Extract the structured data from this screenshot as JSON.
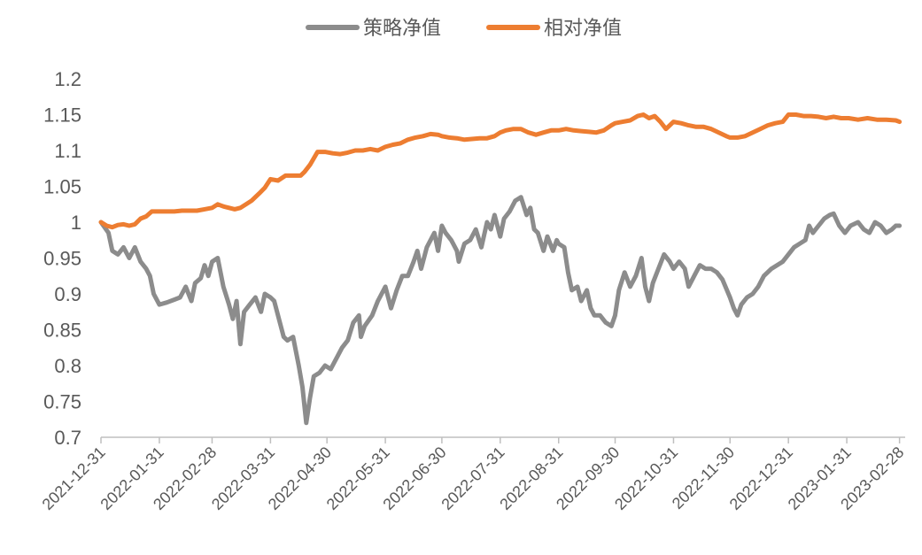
{
  "chart_data": {
    "type": "line",
    "title": "",
    "xlabel": "",
    "ylabel": "",
    "ylim": [
      0.7,
      1.2
    ],
    "yticks": [
      "0.7",
      "0.75",
      "0.8",
      "0.85",
      "0.9",
      "0.95",
      "1",
      "1.05",
      "1.1",
      "1.15",
      "1.2"
    ],
    "xlim": [
      "2021-12-31",
      "2023-03-03"
    ],
    "xticks": [
      "2021-12-31",
      "2022-01-31",
      "2022-02-28",
      "2022-03-31",
      "2022-04-30",
      "2022-05-31",
      "2022-06-30",
      "2022-07-31",
      "2022-08-31",
      "2022-09-30",
      "2022-10-31",
      "2022-11-30",
      "2022-12-31",
      "2023-01-31",
      "2023-02-28"
    ],
    "legend_position": "top-center",
    "grid": false,
    "series": [
      {
        "name": "策略净值",
        "color": "#8c8c8c",
        "points": [
          [
            "2021-12-31",
            1.0
          ],
          [
            "2022-01-04",
            0.985
          ],
          [
            "2022-01-06",
            0.96
          ],
          [
            "2022-01-09",
            0.955
          ],
          [
            "2022-01-12",
            0.965
          ],
          [
            "2022-01-15",
            0.95
          ],
          [
            "2022-01-18",
            0.965
          ],
          [
            "2022-01-21",
            0.945
          ],
          [
            "2022-01-24",
            0.935
          ],
          [
            "2022-01-26",
            0.925
          ],
          [
            "2022-01-28",
            0.9
          ],
          [
            "2022-01-31",
            0.885
          ],
          [
            "2022-02-04",
            0.888
          ],
          [
            "2022-02-08",
            0.892
          ],
          [
            "2022-02-11",
            0.895
          ],
          [
            "2022-02-14",
            0.91
          ],
          [
            "2022-02-17",
            0.89
          ],
          [
            "2022-02-19",
            0.915
          ],
          [
            "2022-02-22",
            0.922
          ],
          [
            "2022-02-24",
            0.94
          ],
          [
            "2022-02-26",
            0.925
          ],
          [
            "2022-02-28",
            0.945
          ],
          [
            "2022-03-03",
            0.95
          ],
          [
            "2022-03-06",
            0.91
          ],
          [
            "2022-03-09",
            0.885
          ],
          [
            "2022-03-11",
            0.865
          ],
          [
            "2022-03-13",
            0.89
          ],
          [
            "2022-03-15",
            0.83
          ],
          [
            "2022-03-17",
            0.875
          ],
          [
            "2022-03-20",
            0.885
          ],
          [
            "2022-03-23",
            0.895
          ],
          [
            "2022-03-26",
            0.875
          ],
          [
            "2022-03-28",
            0.9
          ],
          [
            "2022-03-31",
            0.895
          ],
          [
            "2022-04-02",
            0.89
          ],
          [
            "2022-04-05",
            0.86
          ],
          [
            "2022-04-07",
            0.84
          ],
          [
            "2022-04-09",
            0.835
          ],
          [
            "2022-04-12",
            0.84
          ],
          [
            "2022-04-15",
            0.8
          ],
          [
            "2022-04-17",
            0.77
          ],
          [
            "2022-04-19",
            0.72
          ],
          [
            "2022-04-21",
            0.755
          ],
          [
            "2022-04-23",
            0.785
          ],
          [
            "2022-04-26",
            0.79
          ],
          [
            "2022-04-29",
            0.8
          ],
          [
            "2022-05-02",
            0.795
          ],
          [
            "2022-05-05",
            0.81
          ],
          [
            "2022-05-08",
            0.825
          ],
          [
            "2022-05-11",
            0.835
          ],
          [
            "2022-05-14",
            0.86
          ],
          [
            "2022-05-17",
            0.87
          ],
          [
            "2022-05-18",
            0.84
          ],
          [
            "2022-05-20",
            0.855
          ],
          [
            "2022-05-24",
            0.87
          ],
          [
            "2022-05-27",
            0.89
          ],
          [
            "2022-05-31",
            0.91
          ],
          [
            "2022-06-03",
            0.88
          ],
          [
            "2022-06-06",
            0.905
          ],
          [
            "2022-06-09",
            0.925
          ],
          [
            "2022-06-12",
            0.925
          ],
          [
            "2022-06-15",
            0.945
          ],
          [
            "2022-06-17",
            0.96
          ],
          [
            "2022-06-19",
            0.935
          ],
          [
            "2022-06-22",
            0.965
          ],
          [
            "2022-06-26",
            0.985
          ],
          [
            "2022-06-28",
            0.96
          ],
          [
            "2022-06-30",
            0.995
          ],
          [
            "2022-07-02",
            0.985
          ],
          [
            "2022-07-05",
            0.975
          ],
          [
            "2022-07-08",
            0.96
          ],
          [
            "2022-07-09",
            0.945
          ],
          [
            "2022-07-12",
            0.97
          ],
          [
            "2022-07-15",
            0.975
          ],
          [
            "2022-07-18",
            0.99
          ],
          [
            "2022-07-21",
            0.965
          ],
          [
            "2022-07-24",
            1.0
          ],
          [
            "2022-07-26",
            0.99
          ],
          [
            "2022-07-28",
            1.01
          ],
          [
            "2022-07-31",
            0.98
          ],
          [
            "2022-08-02",
            1.005
          ],
          [
            "2022-08-05",
            1.015
          ],
          [
            "2022-08-08",
            1.03
          ],
          [
            "2022-08-11",
            1.035
          ],
          [
            "2022-08-14",
            1.01
          ],
          [
            "2022-08-16",
            1.02
          ],
          [
            "2022-08-18",
            0.99
          ],
          [
            "2022-08-20",
            0.985
          ],
          [
            "2022-08-23",
            0.96
          ],
          [
            "2022-08-25",
            0.98
          ],
          [
            "2022-08-28",
            0.96
          ],
          [
            "2022-08-30",
            0.975
          ],
          [
            "2022-08-31",
            0.97
          ],
          [
            "2022-09-03",
            0.965
          ],
          [
            "2022-09-05",
            0.93
          ],
          [
            "2022-09-07",
            0.905
          ],
          [
            "2022-09-10",
            0.91
          ],
          [
            "2022-09-12",
            0.89
          ],
          [
            "2022-09-15",
            0.905
          ],
          [
            "2022-09-17",
            0.88
          ],
          [
            "2022-09-19",
            0.87
          ],
          [
            "2022-09-22",
            0.87
          ],
          [
            "2022-09-25",
            0.86
          ],
          [
            "2022-09-28",
            0.855
          ],
          [
            "2022-09-30",
            0.87
          ],
          [
            "2022-10-02",
            0.905
          ],
          [
            "2022-10-05",
            0.93
          ],
          [
            "2022-10-08",
            0.91
          ],
          [
            "2022-10-11",
            0.925
          ],
          [
            "2022-10-14",
            0.95
          ],
          [
            "2022-10-16",
            0.91
          ],
          [
            "2022-10-18",
            0.89
          ],
          [
            "2022-10-20",
            0.915
          ],
          [
            "2022-10-23",
            0.935
          ],
          [
            "2022-10-26",
            0.955
          ],
          [
            "2022-10-29",
            0.945
          ],
          [
            "2022-10-31",
            0.935
          ],
          [
            "2022-11-03",
            0.945
          ],
          [
            "2022-11-06",
            0.935
          ],
          [
            "2022-11-08",
            0.91
          ],
          [
            "2022-11-11",
            0.925
          ],
          [
            "2022-11-14",
            0.94
          ],
          [
            "2022-11-17",
            0.935
          ],
          [
            "2022-11-20",
            0.935
          ],
          [
            "2022-11-23",
            0.93
          ],
          [
            "2022-11-26",
            0.92
          ],
          [
            "2022-11-30",
            0.895
          ],
          [
            "2022-12-02",
            0.88
          ],
          [
            "2022-12-04",
            0.87
          ],
          [
            "2022-12-06",
            0.885
          ],
          [
            "2022-12-09",
            0.895
          ],
          [
            "2022-12-12",
            0.9
          ],
          [
            "2022-12-15",
            0.91
          ],
          [
            "2022-12-18",
            0.925
          ],
          [
            "2022-12-22",
            0.935
          ],
          [
            "2022-12-25",
            0.94
          ],
          [
            "2022-12-28",
            0.945
          ],
          [
            "2022-12-31",
            0.955
          ],
          [
            "2023-01-03",
            0.965
          ],
          [
            "2023-01-06",
            0.97
          ],
          [
            "2023-01-09",
            0.975
          ],
          [
            "2023-01-11",
            0.995
          ],
          [
            "2023-01-13",
            0.985
          ],
          [
            "2023-01-16",
            0.995
          ],
          [
            "2023-01-19",
            1.005
          ],
          [
            "2023-01-22",
            1.01
          ],
          [
            "2023-01-24",
            1.012
          ],
          [
            "2023-01-27",
            0.995
          ],
          [
            "2023-01-30",
            0.985
          ],
          [
            "2023-02-02",
            0.995
          ],
          [
            "2023-02-06",
            1.0
          ],
          [
            "2023-02-09",
            0.99
          ],
          [
            "2023-02-12",
            0.985
          ],
          [
            "2023-02-15",
            1.0
          ],
          [
            "2023-02-18",
            0.995
          ],
          [
            "2023-02-21",
            0.985
          ],
          [
            "2023-02-24",
            0.99
          ],
          [
            "2023-02-26",
            0.995
          ],
          [
            "2023-02-28",
            0.995
          ]
        ]
      },
      {
        "name": "相对净值",
        "color": "#ed7d31",
        "points": [
          [
            "2021-12-31",
            1.0
          ],
          [
            "2022-01-03",
            0.995
          ],
          [
            "2022-01-06",
            0.993
          ],
          [
            "2022-01-09",
            0.996
          ],
          [
            "2022-01-12",
            0.997
          ],
          [
            "2022-01-15",
            0.995
          ],
          [
            "2022-01-18",
            0.997
          ],
          [
            "2022-01-21",
            1.005
          ],
          [
            "2022-01-24",
            1.008
          ],
          [
            "2022-01-27",
            1.015
          ],
          [
            "2022-01-31",
            1.015
          ],
          [
            "2022-02-04",
            1.015
          ],
          [
            "2022-02-08",
            1.015
          ],
          [
            "2022-02-12",
            1.016
          ],
          [
            "2022-02-16",
            1.016
          ],
          [
            "2022-02-20",
            1.016
          ],
          [
            "2022-02-24",
            1.018
          ],
          [
            "2022-02-28",
            1.02
          ],
          [
            "2022-03-03",
            1.025
          ],
          [
            "2022-03-06",
            1.022
          ],
          [
            "2022-03-09",
            1.02
          ],
          [
            "2022-03-12",
            1.018
          ],
          [
            "2022-03-15",
            1.02
          ],
          [
            "2022-03-18",
            1.025
          ],
          [
            "2022-03-21",
            1.03
          ],
          [
            "2022-03-25",
            1.04
          ],
          [
            "2022-03-28",
            1.048
          ],
          [
            "2022-03-31",
            1.06
          ],
          [
            "2022-04-04",
            1.058
          ],
          [
            "2022-04-08",
            1.065
          ],
          [
            "2022-04-12",
            1.065
          ],
          [
            "2022-04-16",
            1.065
          ],
          [
            "2022-04-18",
            1.07
          ],
          [
            "2022-04-21",
            1.08
          ],
          [
            "2022-04-25",
            1.098
          ],
          [
            "2022-04-29",
            1.098
          ],
          [
            "2022-05-03",
            1.096
          ],
          [
            "2022-05-07",
            1.095
          ],
          [
            "2022-05-11",
            1.097
          ],
          [
            "2022-05-15",
            1.1
          ],
          [
            "2022-05-19",
            1.1
          ],
          [
            "2022-05-23",
            1.102
          ],
          [
            "2022-05-27",
            1.1
          ],
          [
            "2022-05-31",
            1.105
          ],
          [
            "2022-06-04",
            1.108
          ],
          [
            "2022-06-08",
            1.11
          ],
          [
            "2022-06-12",
            1.115
          ],
          [
            "2022-06-16",
            1.118
          ],
          [
            "2022-06-20",
            1.12
          ],
          [
            "2022-06-24",
            1.123
          ],
          [
            "2022-06-28",
            1.122
          ],
          [
            "2022-06-30",
            1.12
          ],
          [
            "2022-07-04",
            1.118
          ],
          [
            "2022-07-08",
            1.117
          ],
          [
            "2022-07-12",
            1.115
          ],
          [
            "2022-07-16",
            1.116
          ],
          [
            "2022-07-20",
            1.117
          ],
          [
            "2022-07-24",
            1.117
          ],
          [
            "2022-07-28",
            1.12
          ],
          [
            "2022-07-31",
            1.125
          ],
          [
            "2022-08-03",
            1.128
          ],
          [
            "2022-08-07",
            1.13
          ],
          [
            "2022-08-11",
            1.13
          ],
          [
            "2022-08-15",
            1.125
          ],
          [
            "2022-08-19",
            1.122
          ],
          [
            "2022-08-23",
            1.125
          ],
          [
            "2022-08-27",
            1.128
          ],
          [
            "2022-08-31",
            1.128
          ],
          [
            "2022-09-04",
            1.13
          ],
          [
            "2022-09-08",
            1.128
          ],
          [
            "2022-09-12",
            1.127
          ],
          [
            "2022-09-16",
            1.126
          ],
          [
            "2022-09-20",
            1.125
          ],
          [
            "2022-09-24",
            1.128
          ],
          [
            "2022-09-28",
            1.135
          ],
          [
            "2022-09-30",
            1.138
          ],
          [
            "2022-10-04",
            1.14
          ],
          [
            "2022-10-08",
            1.142
          ],
          [
            "2022-10-12",
            1.148
          ],
          [
            "2022-10-15",
            1.15
          ],
          [
            "2022-10-18",
            1.145
          ],
          [
            "2022-10-21",
            1.148
          ],
          [
            "2022-10-24",
            1.14
          ],
          [
            "2022-10-27",
            1.13
          ],
          [
            "2022-10-31",
            1.14
          ],
          [
            "2022-11-04",
            1.138
          ],
          [
            "2022-11-08",
            1.135
          ],
          [
            "2022-11-12",
            1.133
          ],
          [
            "2022-11-16",
            1.133
          ],
          [
            "2022-11-20",
            1.13
          ],
          [
            "2022-11-24",
            1.125
          ],
          [
            "2022-11-28",
            1.12
          ],
          [
            "2022-11-30",
            1.118
          ],
          [
            "2022-12-04",
            1.118
          ],
          [
            "2022-12-08",
            1.12
          ],
          [
            "2022-12-12",
            1.125
          ],
          [
            "2022-12-16",
            1.13
          ],
          [
            "2022-12-20",
            1.135
          ],
          [
            "2022-12-24",
            1.138
          ],
          [
            "2022-12-28",
            1.14
          ],
          [
            "2022-12-31",
            1.15
          ],
          [
            "2023-01-04",
            1.15
          ],
          [
            "2023-01-08",
            1.148
          ],
          [
            "2023-01-12",
            1.148
          ],
          [
            "2023-01-16",
            1.147
          ],
          [
            "2023-01-20",
            1.145
          ],
          [
            "2023-01-24",
            1.147
          ],
          [
            "2023-01-28",
            1.145
          ],
          [
            "2023-02-01",
            1.145
          ],
          [
            "2023-02-06",
            1.143
          ],
          [
            "2023-02-11",
            1.145
          ],
          [
            "2023-02-16",
            1.143
          ],
          [
            "2023-02-21",
            1.143
          ],
          [
            "2023-02-26",
            1.142
          ],
          [
            "2023-02-28",
            1.14
          ]
        ]
      }
    ]
  }
}
